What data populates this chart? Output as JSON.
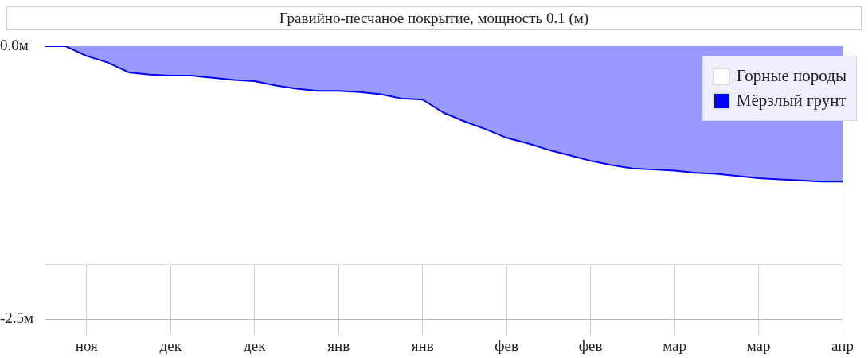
{
  "chart_data": {
    "type": "area",
    "title": "Гравийно-песчаное покрытие, мощность 0.1 (м)",
    "categories": [
      null,
      null,
      "ноя",
      null,
      null,
      null,
      "дек",
      null,
      null,
      null,
      "дек",
      null,
      null,
      null,
      "янв",
      null,
      null,
      null,
      "янв",
      null,
      null,
      null,
      "фев",
      null,
      null,
      null,
      "фев",
      null,
      null,
      null,
      "мар",
      null,
      null,
      null,
      "мар",
      null,
      null,
      null,
      "апр"
    ],
    "series": [
      {
        "name": "Горные породы",
        "color": "#ffffff",
        "values": [
          -2.0,
          -2.0,
          -2.0,
          -2.0,
          -2.0,
          -2.0,
          -2.0,
          -2.0,
          -2.0,
          -2.0,
          -2.0,
          -2.0,
          -2.0,
          -2.0,
          -2.0,
          -2.0,
          -2.0,
          -2.0,
          -2.0,
          -2.0,
          -2.0,
          -2.0,
          -2.0,
          -2.0,
          -2.0,
          -2.0,
          -2.0,
          -2.0,
          -2.0,
          -2.0,
          -2.0,
          -2.0,
          -2.0,
          -2.0,
          -2.0,
          -2.0,
          -2.0,
          -2.0,
          -2.0
        ]
      },
      {
        "name": "Мёрзлый грунт",
        "color": "#0000ff",
        "values": [
          0,
          0,
          -0.09,
          -0.15,
          -0.24,
          -0.26,
          -0.27,
          -0.27,
          -0.29,
          -0.31,
          -0.32,
          -0.36,
          -0.39,
          -0.41,
          -0.41,
          -0.42,
          -0.44,
          -0.48,
          -0.49,
          -0.61,
          -0.69,
          -0.76,
          -0.84,
          -0.89,
          -0.95,
          -1.0,
          -1.05,
          -1.09,
          -1.12,
          -1.13,
          -1.14,
          -1.16,
          -1.17,
          -1.19,
          -1.21,
          -1.22,
          -1.23,
          -1.24,
          -1.24
        ]
      }
    ],
    "ylim": [
      -2.5,
      0
    ],
    "yticks": [
      {
        "value": 0,
        "label": "0.0м"
      },
      {
        "value": -2.5,
        "label": "-2.5м"
      }
    ],
    "grid": "x",
    "legend": "top right"
  }
}
